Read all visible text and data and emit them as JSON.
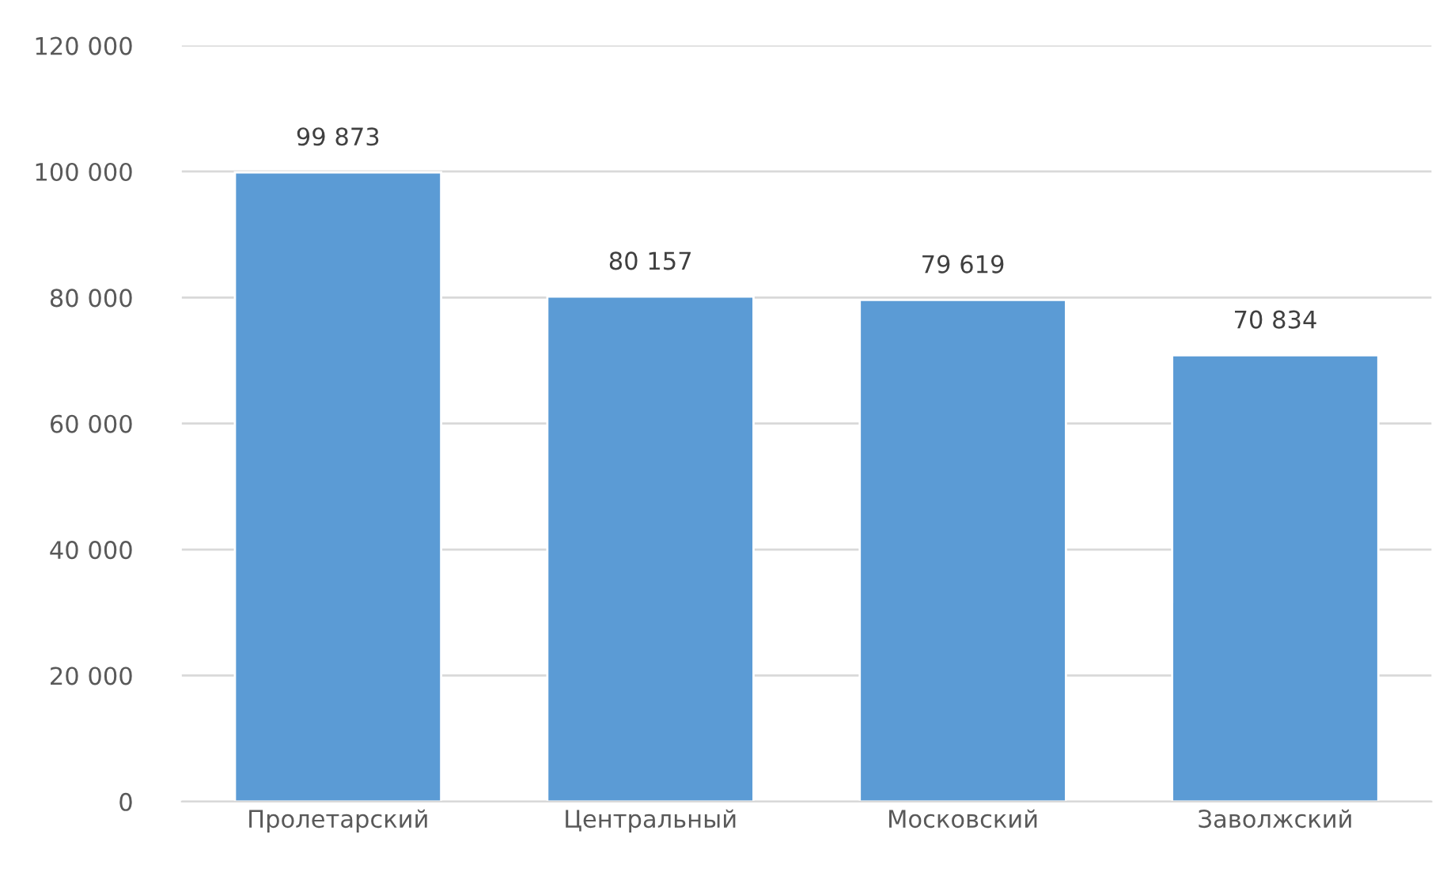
{
  "chart_data": {
    "type": "bar",
    "categories": [
      "Пролетарский",
      "Центральный",
      "Московский",
      "Заволжский"
    ],
    "values": [
      99873,
      80157,
      79619,
      70834
    ],
    "value_labels": [
      "99 873",
      "80 157",
      "79 619",
      "70 834"
    ],
    "color": "#5b9bd5",
    "ylim": [
      0,
      120000
    ],
    "yticks": [
      {
        "value": 0,
        "label": "0"
      },
      {
        "value": 20000,
        "label": "20 000"
      },
      {
        "value": 40000,
        "label": "40 000"
      },
      {
        "value": 60000,
        "label": "60 000"
      },
      {
        "value": 80000,
        "label": "80 000"
      },
      {
        "value": 100000,
        "label": "100 000"
      },
      {
        "value": 120000,
        "label": "120 000"
      }
    ],
    "grid": "y"
  }
}
